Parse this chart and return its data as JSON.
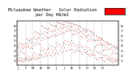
{
  "title": "Milwaukee Weather   Solar Radiation",
  "subtitle": "per Day KW/m2",
  "bg_color": "#ffffff",
  "plot_bg": "#ffffff",
  "grid_color": "#aaaaaa",
  "dot_color_primary": "#ff0000",
  "dot_color_secondary": "#000000",
  "legend_box_color": "#ff0000",
  "ylim": [
    0,
    9
  ],
  "yticks": [
    1,
    2,
    3,
    4,
    5,
    6,
    7,
    8
  ],
  "ylabel_fontsize": 3.2,
  "xlabel_fontsize": 2.8,
  "title_fontsize": 3.8,
  "month_starts": [
    0,
    31,
    59,
    90,
    120,
    151,
    181,
    212,
    243,
    273,
    304,
    334
  ],
  "month_labels": [
    "J",
    "F",
    "M",
    "A",
    "M",
    "J",
    "J",
    "A",
    "S",
    "O",
    "N",
    "D"
  ],
  "values_primary": [
    1.2,
    3.5,
    0.8,
    2.1,
    4.2,
    1.5,
    3.8,
    0.9,
    2.6,
    4.5,
    1.1,
    3.2,
    0.7,
    2.8,
    4.1,
    1.4,
    3.6,
    0.8,
    2.3,
    4.3,
    1.0,
    3.4,
    0.6,
    2.5,
    4.0,
    1.3,
    3.7,
    0.9,
    2.2,
    4.4,
    1.2,
    1.5,
    4.0,
    1.2,
    3.5,
    5.2,
    1.8,
    4.5,
    1.0,
    3.8,
    5.5,
    1.4,
    4.2,
    0.9,
    3.6,
    5.0,
    1.7,
    4.8,
    1.1,
    3.4,
    5.3,
    1.3,
    4.4,
    1.0,
    3.7,
    5.1,
    1.6,
    4.6,
    1.2,
    3.3,
    2.0,
    5.5,
    1.5,
    4.0,
    6.5,
    2.5,
    5.8,
    1.2,
    4.5,
    6.8,
    1.8,
    5.2,
    1.0,
    4.2,
    6.3,
    2.2,
    5.6,
    1.4,
    4.8,
    6.6,
    1.6,
    5.4,
    1.2,
    4.4,
    6.4,
    2.0,
    5.7,
    1.5,
    4.1,
    6.2,
    2.3,
    3.0,
    7.0,
    2.0,
    5.0,
    8.0,
    3.5,
    6.5,
    1.8,
    5.5,
    7.8,
    2.8,
    6.2,
    1.5,
    5.2,
    7.5,
    3.2,
    6.8,
    2.2,
    5.8,
    7.6,
    2.5,
    6.4,
    1.8,
    5.4,
    7.3,
    3.0,
    6.6,
    2.0,
    5.6,
    7.2,
    3.3,
    3.5,
    7.5,
    2.5,
    5.5,
    8.5,
    4.0,
    7.0,
    2.0,
    6.0,
    8.2,
    3.2,
    6.8,
    1.8,
    5.8,
    8.0,
    3.8,
    7.2,
    2.5,
    6.3,
    8.1,
    3.0,
    6.9,
    2.0,
    5.9,
    7.8,
    3.5,
    7.1,
    2.3,
    6.1,
    7.9,
    4.0,
    8.0,
    3.0,
    6.0,
    8.8,
    4.5,
    7.5,
    2.5,
    6.5,
    8.6,
    3.8,
    7.2,
    2.2,
    6.2,
    8.4,
    4.2,
    7.8,
    3.0,
    6.8,
    8.5,
    3.5,
    7.4,
    2.5,
    6.4,
    8.3,
    4.0,
    7.6,
    2.8,
    6.6,
    8.2,
    4.5,
    4.5,
    8.2,
    3.5,
    6.5,
    8.9,
    5.0,
    7.8,
    3.0,
    7.0,
    8.7,
    4.2,
    7.5,
    2.8,
    6.8,
    8.6,
    4.8,
    8.0,
    3.5,
    7.2,
    8.8,
    4.0,
    7.6,
    3.0,
    6.9,
    8.5,
    4.5,
    7.9,
    3.2,
    7.1,
    8.4,
    5.0,
    4.0,
    7.8,
    3.2,
    6.2,
    8.5,
    4.5,
    7.2,
    2.8,
    6.5,
    8.3,
    3.8,
    7.0,
    2.5,
    6.2,
    8.1,
    4.2,
    7.5,
    3.0,
    6.8,
    8.2,
    3.5,
    7.2,
    2.8,
    6.4,
    8.0,
    4.0,
    7.4,
    3.0,
    6.6,
    7.9,
    4.5,
    3.5,
    7.0,
    2.8,
    5.8,
    7.8,
    4.0,
    6.8,
    2.5,
    5.8,
    7.6,
    3.5,
    6.5,
    2.2,
    5.5,
    7.3,
    3.8,
    7.0,
    2.8,
    6.2,
    7.5,
    3.2,
    6.6,
    2.5,
    5.9,
    7.2,
    3.6,
    6.8,
    2.6,
    5.7,
    7.1,
    2.8,
    6.0,
    2.2,
    5.0,
    7.2,
    3.5,
    6.2,
    2.0,
    5.2,
    7.0,
    3.0,
    5.8,
    1.8,
    4.8,
    6.8,
    3.2,
    6.4,
    2.2,
    5.4,
    6.9,
    2.6,
    6.0,
    2.0,
    5.0,
    6.6,
    3.0,
    6.2,
    2.2,
    5.2,
    6.5,
    3.5,
    2.0,
    5.0,
    1.5,
    3.8,
    6.0,
    2.8,
    5.2,
    1.2,
    4.2,
    5.8,
    2.5,
    5.0,
    1.0,
    4.0,
    5.5,
    2.5,
    5.4,
    1.5,
    4.5,
    5.7,
    2.2,
    5.0,
    1.3,
    4.2,
    5.4,
    2.6,
    5.2,
    1.5,
    4.4,
    5.3,
    1.5,
    4.0,
    1.0,
    3.0,
    5.0,
    2.0,
    4.2,
    0.8,
    3.2,
    4.8,
    1.8,
    3.8,
    0.6,
    3.0,
    4.5,
    2.0,
    4.4,
    1.2,
    3.5,
    4.7,
    1.5,
    4.0,
    1.0,
    3.2,
    4.4,
    1.8,
    4.2,
    1.2,
    3.4,
    4.3,
    1.5,
    1.0,
    3.2,
    0.7,
    2.2,
    4.2,
    1.4,
    3.5,
    0.8,
    2.5,
    4.0,
    1.2,
    3.0,
    0.5,
    2.2,
    3.8,
    1.5,
    3.6,
    0.9,
    2.6,
    3.9,
    1.0,
    3.2,
    0.7,
    2.4,
    3.6,
    1.3,
    3.4,
    0.8,
    2.3,
    3.5,
    1.2
  ]
}
